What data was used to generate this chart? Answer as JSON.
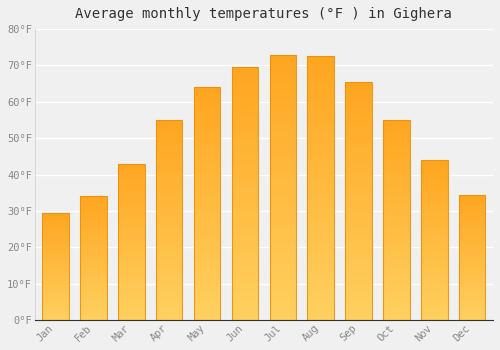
{
  "title": "Average monthly temperatures (°F ) in Gighera",
  "months": [
    "Jan",
    "Feb",
    "Mar",
    "Apr",
    "May",
    "Jun",
    "Jul",
    "Aug",
    "Sep",
    "Oct",
    "Nov",
    "Dec"
  ],
  "values": [
    29.5,
    34.0,
    43.0,
    55.0,
    64.0,
    69.5,
    73.0,
    72.5,
    65.5,
    55.0,
    44.0,
    34.5
  ],
  "bar_color_bottom": "#FFD060",
  "bar_color_top": "#FFA520",
  "bar_edge_color": "#E8920A",
  "background_color": "#F0F0F0",
  "grid_color": "#FFFFFF",
  "ylim": [
    0,
    80
  ],
  "yticks": [
    0,
    10,
    20,
    30,
    40,
    50,
    60,
    70,
    80
  ],
  "ytick_labels": [
    "0°F",
    "10°F",
    "20°F",
    "30°F",
    "40°F",
    "50°F",
    "60°F",
    "70°F",
    "80°F"
  ],
  "title_fontsize": 10,
  "tick_fontsize": 7.5,
  "tick_color": "#888888",
  "bar_width": 0.7
}
